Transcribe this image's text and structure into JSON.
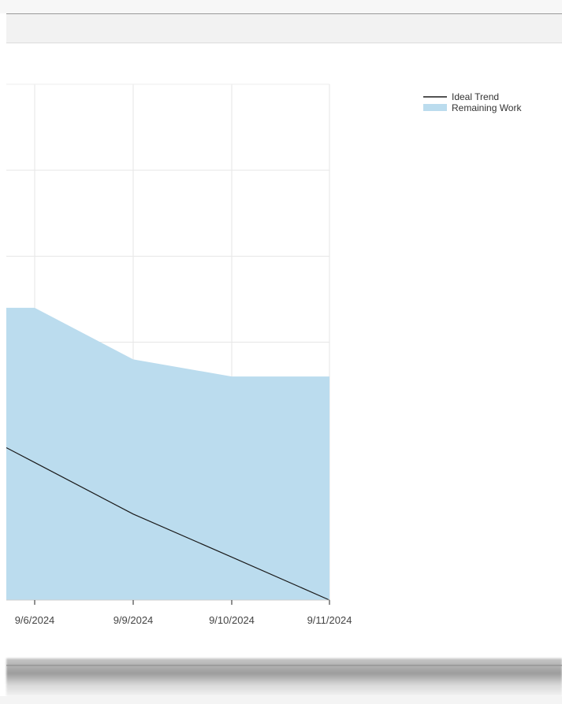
{
  "chart_data": {
    "type": "area",
    "x": [
      "9/6/2024",
      "9/9/2024",
      "9/10/2024",
      "9/11/2024"
    ],
    "series": [
      {
        "name": "Remaining Work",
        "kind": "area",
        "values": [
          34,
          28,
          26,
          26
        ]
      },
      {
        "name": "Ideal Trend",
        "kind": "line",
        "values": [
          16,
          10,
          5,
          0
        ]
      }
    ],
    "ylim": [
      0,
      60
    ],
    "grid": true,
    "legend_position": "top-right",
    "colors": {
      "area_fill": "#bbdcee",
      "line": "#1a1a1a",
      "grid": "#e6e6e6",
      "axis": "#555555"
    }
  }
}
